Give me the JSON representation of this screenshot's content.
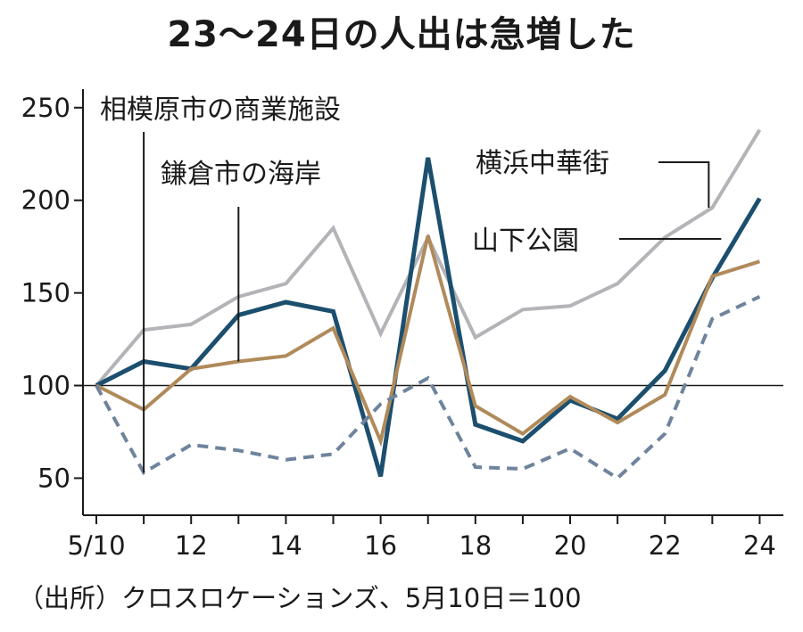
{
  "chart_data": {
    "type": "line",
    "title": "23～24日の人出は急増した",
    "xlabel": "",
    "ylabel": "",
    "x": [
      10,
      11,
      12,
      13,
      14,
      15,
      16,
      17,
      18,
      19,
      20,
      21,
      22,
      23,
      24
    ],
    "x_tick_labels": [
      "5/10",
      "12",
      "14",
      "16",
      "18",
      "20",
      "22",
      "24"
    ],
    "x_tick_values": [
      10,
      12,
      14,
      16,
      18,
      20,
      22,
      24
    ],
    "y_ticks": [
      50,
      100,
      150,
      200,
      250
    ],
    "ylim": [
      30,
      260
    ],
    "xlim": [
      10,
      24.5
    ],
    "baseline": 100,
    "series": [
      {
        "name": "横浜中華街",
        "color": "#b3b3b8",
        "style": "solid",
        "values": [
          100,
          130,
          133,
          148,
          155,
          185,
          128,
          180,
          126,
          141,
          143,
          155,
          180,
          196,
          238
        ]
      },
      {
        "name": "山下公園",
        "color": "#1c4f6e",
        "style": "solid",
        "values": [
          100,
          113,
          109,
          138,
          145,
          140,
          51,
          223,
          79,
          70,
          92,
          82,
          108,
          158,
          201
        ]
      },
      {
        "name": "鎌倉市の海岸",
        "color": "#b08a5a",
        "style": "solid",
        "values": [
          100,
          87,
          109,
          113,
          116,
          131,
          70,
          181,
          89,
          74,
          94,
          80,
          95,
          159,
          167
        ]
      },
      {
        "name": "相模原市の商業施設",
        "color": "#6f849c",
        "style": "dashed",
        "values": [
          100,
          53,
          68,
          65,
          60,
          63,
          90,
          104,
          56,
          55,
          66,
          50,
          74,
          136,
          148
        ]
      }
    ],
    "annotations": [
      {
        "label": "相模原市の商業施設",
        "series": "相模原市の商業施設"
      },
      {
        "label": "鎌倉市の海岸",
        "series": "鎌倉市の海岸"
      },
      {
        "label": "横浜中華街",
        "series": "横浜中華街"
      },
      {
        "label": "山下公園",
        "series": "山下公園"
      }
    ],
    "source": "（出所）クロスロケーションズ、5月10日＝100"
  },
  "colors": {
    "axis": "#1a1a1a",
    "background": "#ffffff"
  }
}
